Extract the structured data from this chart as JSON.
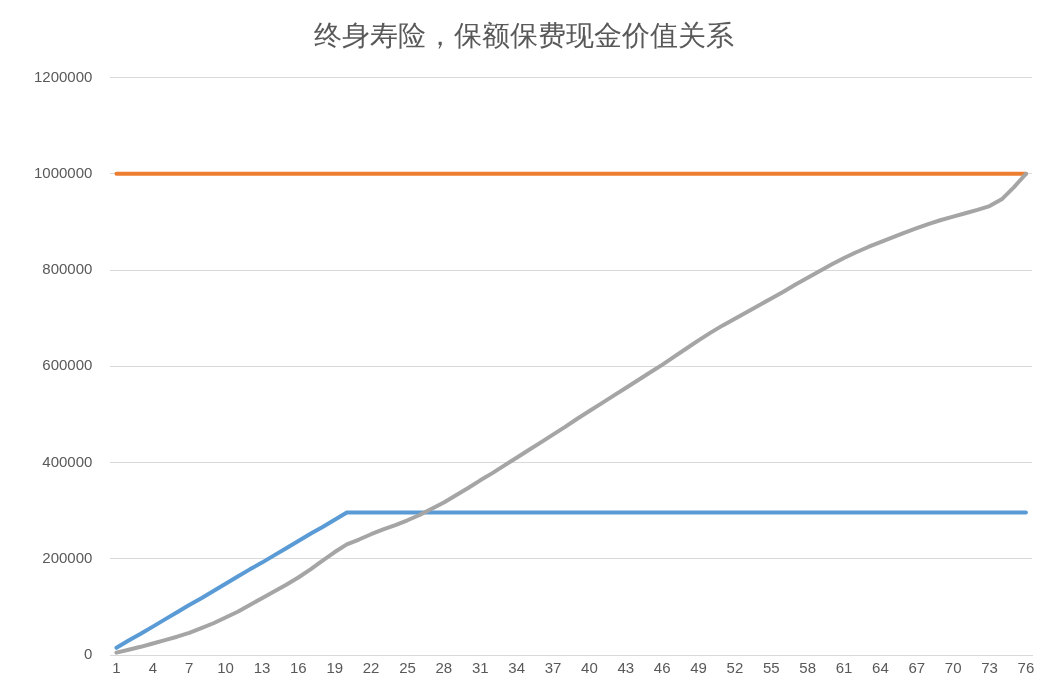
{
  "chart_data": {
    "type": "line",
    "title": "终身寿险，保额保费现金价值关系",
    "categories": [
      "1",
      null,
      null,
      "4",
      null,
      null,
      "7",
      null,
      null,
      "10",
      null,
      null,
      "13",
      null,
      null,
      "16",
      null,
      null,
      "19",
      null,
      null,
      "22",
      null,
      null,
      "25",
      null,
      null,
      "28",
      null,
      null,
      "31",
      null,
      null,
      "34",
      null,
      null,
      "37",
      null,
      null,
      "40",
      null,
      null,
      "43",
      null,
      null,
      "46",
      null,
      null,
      "49",
      null,
      null,
      "52",
      null,
      null,
      "55",
      null,
      null,
      "58",
      null,
      null,
      "61",
      null,
      null,
      "64",
      null,
      null,
      "67",
      null,
      null,
      "70",
      null,
      null,
      "73",
      null,
      null,
      "76"
    ],
    "series": [
      {
        "color": "#5b9bd5",
        "values": [
          15000,
          30000,
          44000,
          59000,
          74000,
          89000,
          104000,
          118000,
          133000,
          148000,
          163000,
          178000,
          192000,
          207000,
          222000,
          237000,
          252000,
          266000,
          281000,
          296000,
          296000,
          296000,
          296000,
          296000,
          296000,
          296000,
          296000,
          296000,
          296000,
          296000,
          296000,
          296000,
          296000,
          296000,
          296000,
          296000,
          296000,
          296000,
          296000,
          296000,
          296000,
          296000,
          296000,
          296000,
          296000,
          296000,
          296000,
          296000,
          296000,
          296000,
          296000,
          296000,
          296000,
          296000,
          296000,
          296000,
          296000,
          296000,
          296000,
          296000,
          296000,
          296000,
          296000,
          296000,
          296000,
          296000,
          296000,
          296000,
          296000,
          296000,
          296000,
          296000,
          296000,
          296000,
          296000,
          296000
        ]
      },
      {
        "color": "#ed7d31",
        "values": [
          1000000,
          1000000,
          1000000,
          1000000,
          1000000,
          1000000,
          1000000,
          1000000,
          1000000,
          1000000,
          1000000,
          1000000,
          1000000,
          1000000,
          1000000,
          1000000,
          1000000,
          1000000,
          1000000,
          1000000,
          1000000,
          1000000,
          1000000,
          1000000,
          1000000,
          1000000,
          1000000,
          1000000,
          1000000,
          1000000,
          1000000,
          1000000,
          1000000,
          1000000,
          1000000,
          1000000,
          1000000,
          1000000,
          1000000,
          1000000,
          1000000,
          1000000,
          1000000,
          1000000,
          1000000,
          1000000,
          1000000,
          1000000,
          1000000,
          1000000,
          1000000,
          1000000,
          1000000,
          1000000,
          1000000,
          1000000,
          1000000,
          1000000,
          1000000,
          1000000,
          1000000,
          1000000,
          1000000,
          1000000,
          1000000,
          1000000,
          1000000,
          1000000,
          1000000,
          1000000,
          1000000,
          1000000,
          1000000,
          1000000,
          1000000,
          1000000
        ]
      },
      {
        "color": "#a5a5a5",
        "values": [
          5000,
          11000,
          17000,
          24000,
          31000,
          38000,
          46000,
          56000,
          66000,
          78000,
          90000,
          104000,
          118000,
          132000,
          146000,
          161000,
          178000,
          196000,
          214000,
          230000,
          240000,
          251000,
          261000,
          270000,
          280000,
          291000,
          304000,
          317000,
          332000,
          347000,
          363000,
          378000,
          394000,
          410000,
          426000,
          442000,
          458000,
          474000,
          491000,
          507000,
          523000,
          539000,
          555000,
          571000,
          587000,
          603000,
          620000,
          637000,
          654000,
          670000,
          685000,
          699000,
          713000,
          727000,
          741000,
          755000,
          770000,
          784000,
          798000,
          812000,
          825000,
          837000,
          848000,
          858000,
          868000,
          878000,
          887000,
          896000,
          904000,
          911000,
          918000,
          925000,
          933000,
          947000,
          972000,
          1000000
        ]
      }
    ],
    "ylim": [
      0,
      1200000
    ],
    "yticks": [
      0,
      200000,
      400000,
      600000,
      800000,
      1000000,
      1200000
    ],
    "grid": "y",
    "marker": "none",
    "line_style": "solid"
  }
}
